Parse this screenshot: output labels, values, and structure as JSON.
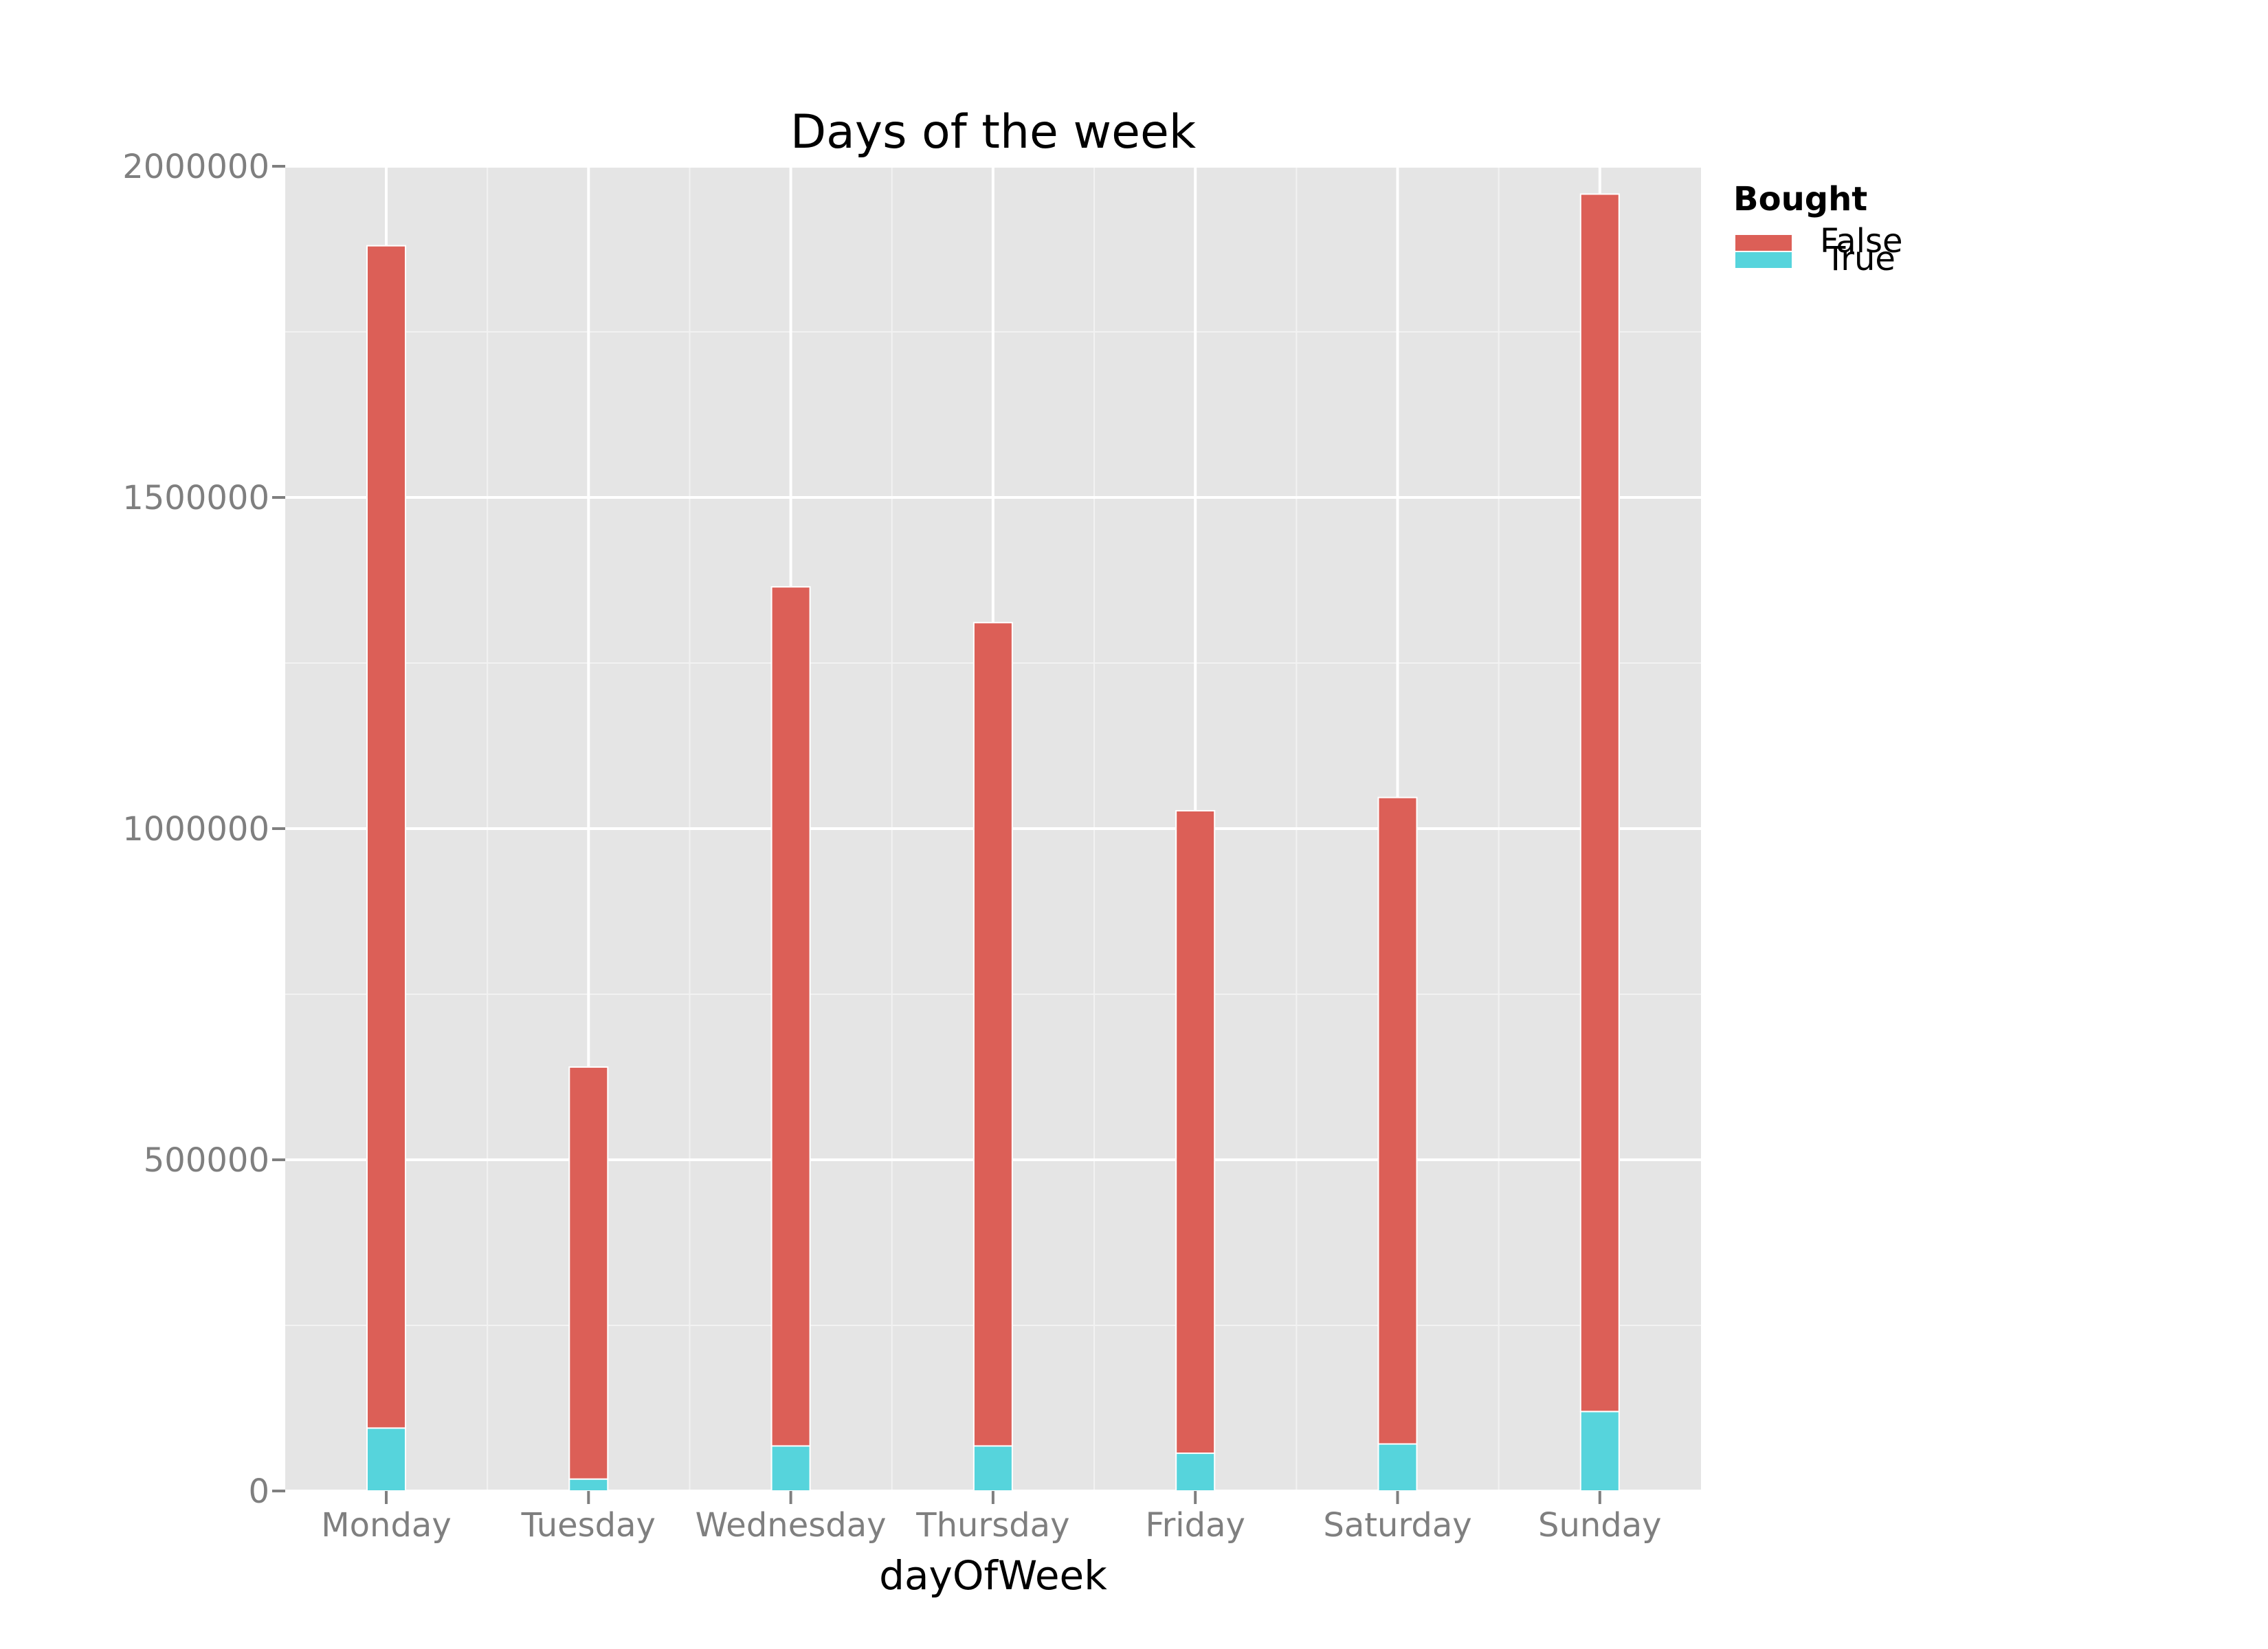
{
  "chart_data": {
    "type": "bar",
    "stacked": true,
    "title": "Days of the week",
    "xlabel": "dayOfWeek",
    "ylabel": "",
    "categories": [
      "Monday",
      "Tuesday",
      "Wednesday",
      "Thursday",
      "Friday",
      "Saturday",
      "Sunday"
    ],
    "ylim": [
      0,
      2000000
    ],
    "yticks": [
      0,
      500000,
      1000000,
      1500000,
      2000000
    ],
    "ytick_labels": [
      "0",
      "500000",
      "1000000",
      "1500000",
      "2000000"
    ],
    "grid": true,
    "series": [
      {
        "name": "True",
        "color": "#56d4dc",
        "values": [
          95000,
          18000,
          68000,
          68000,
          57000,
          71000,
          120000
        ]
      },
      {
        "name": "False",
        "color": "#dc5f57",
        "values": [
          1785000,
          622000,
          1297000,
          1243000,
          970000,
          976000,
          1838000
        ]
      }
    ],
    "legend": {
      "title": "Bought",
      "position": "right",
      "entries": [
        {
          "label": "False",
          "color": "#dc5f57"
        },
        {
          "label": "True",
          "color": "#56d4dc"
        }
      ]
    }
  }
}
